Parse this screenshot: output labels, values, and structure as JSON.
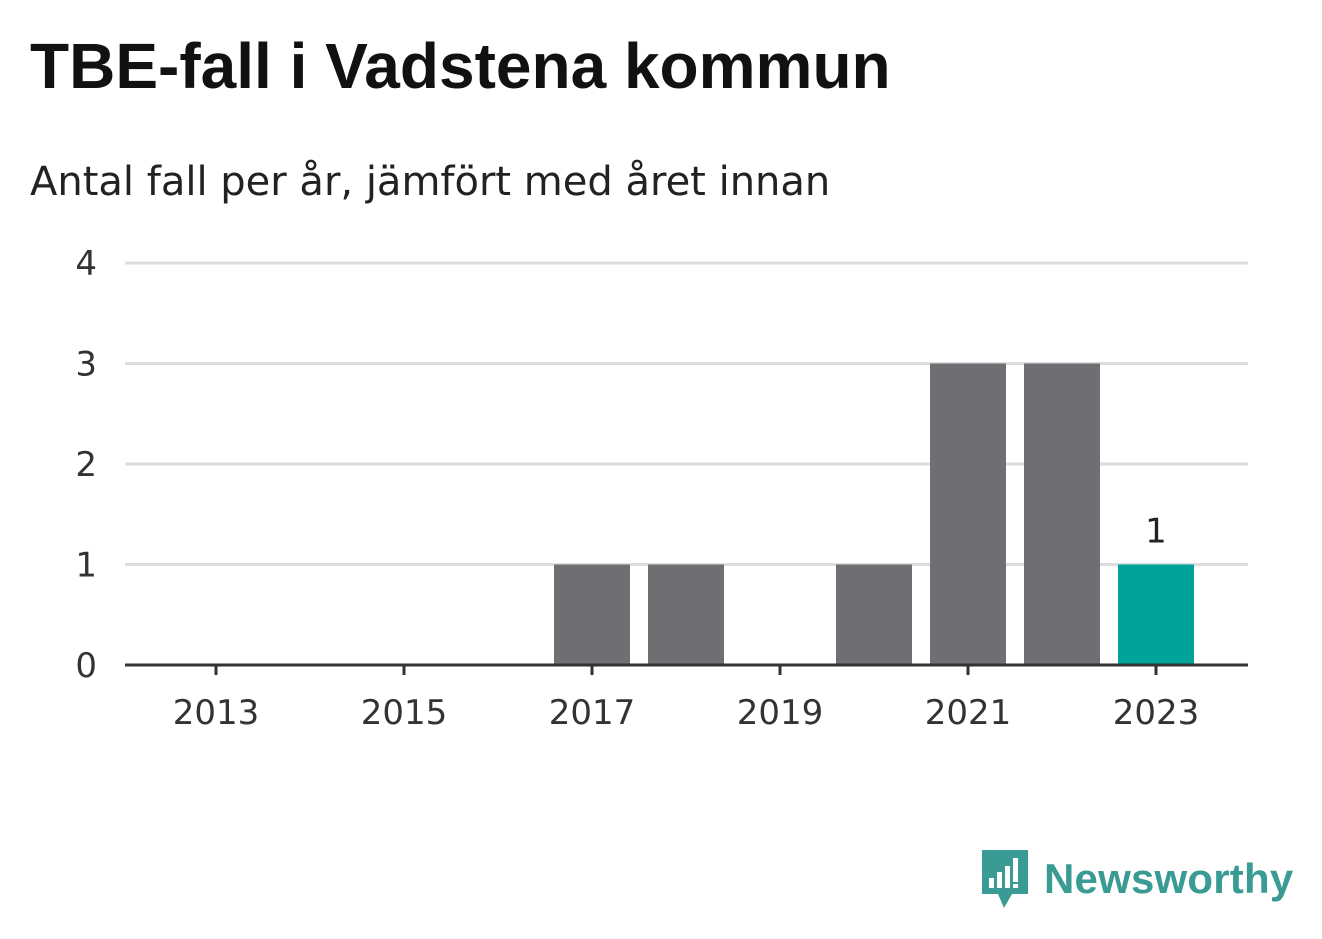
{
  "title": "TBE-fall i Vadstena kommun",
  "subtitle": "Antal fall per år, jämfört med året innan",
  "brand": {
    "name": "Newsworthy",
    "icon": "newsworthy-logo-icon"
  },
  "colors": {
    "bar": "#6f6e73",
    "highlight": "#00a39a",
    "grid": "#dddddd",
    "axis": "#333333"
  },
  "chart_data": {
    "type": "bar",
    "categories": [
      "2013",
      "2014",
      "2015",
      "2016",
      "2017",
      "2018",
      "2019",
      "2020",
      "2021",
      "2022",
      "2023"
    ],
    "values": [
      0,
      0,
      0,
      0,
      1,
      1,
      0,
      1,
      3,
      3,
      1
    ],
    "highlight_index": 10,
    "highlight_label": "1",
    "x_tick_labels": [
      "2013",
      "2015",
      "2017",
      "2019",
      "2021",
      "2023"
    ],
    "y_ticks": [
      0,
      1,
      2,
      3,
      4
    ],
    "ylim": [
      0,
      4
    ],
    "grid": true,
    "xlabel": "",
    "ylabel": ""
  }
}
